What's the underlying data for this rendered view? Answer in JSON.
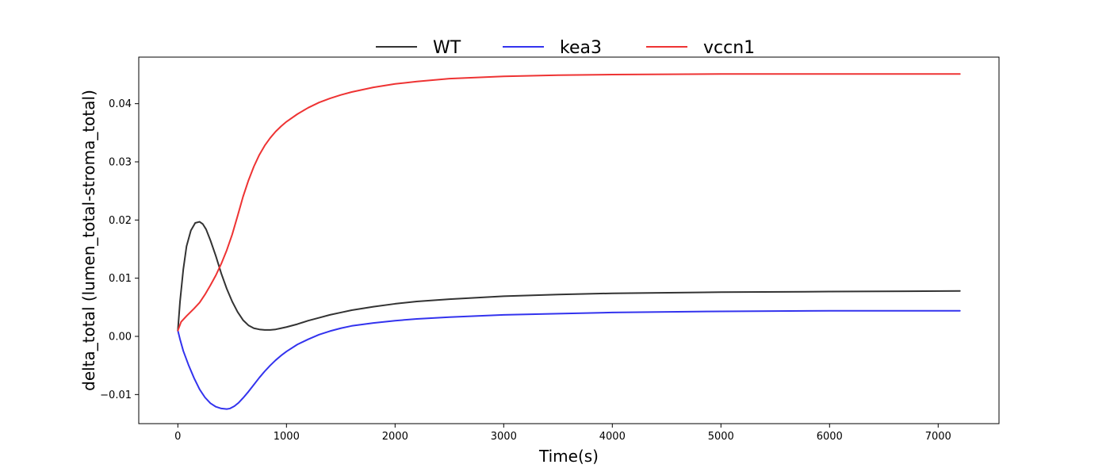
{
  "chart_data": {
    "type": "line",
    "title": "",
    "xlabel": "Time(s)",
    "ylabel": "delta_total (lumen_total-stroma_total)",
    "xlim": [
      -360,
      7560
    ],
    "ylim": [
      -0.015,
      0.048
    ],
    "xticks": [
      0,
      1000,
      2000,
      3000,
      4000,
      5000,
      6000,
      7000
    ],
    "yticks": [
      -0.01,
      0.0,
      0.01,
      0.02,
      0.03,
      0.04
    ],
    "xtick_labels": [
      "0",
      "1000",
      "2000",
      "3000",
      "4000",
      "5000",
      "6000",
      "7000"
    ],
    "ytick_labels": [
      "−0.01",
      "0.00",
      "0.01",
      "0.02",
      "0.03",
      "0.04"
    ],
    "grid": false,
    "legend_position": "top-center",
    "series": [
      {
        "name": "WT",
        "color": "#333333",
        "x": [
          0,
          20,
          50,
          80,
          120,
          160,
          200,
          230,
          260,
          300,
          350,
          400,
          450,
          500,
          550,
          600,
          650,
          700,
          750,
          800,
          850,
          900,
          950,
          1000,
          1100,
          1200,
          1300,
          1400,
          1500,
          1600,
          1800,
          2000,
          2200,
          2500,
          3000,
          3500,
          4000,
          5000,
          6000,
          7200
        ],
        "y": [
          0.001,
          0.006,
          0.0115,
          0.0155,
          0.0182,
          0.0195,
          0.0197,
          0.0193,
          0.0184,
          0.0165,
          0.0138,
          0.0108,
          0.0082,
          0.006,
          0.0042,
          0.0028,
          0.0019,
          0.0014,
          0.0012,
          0.0011,
          0.0011,
          0.0012,
          0.0014,
          0.0016,
          0.0021,
          0.0027,
          0.0032,
          0.0037,
          0.0041,
          0.0045,
          0.0051,
          0.0056,
          0.006,
          0.0064,
          0.0069,
          0.0072,
          0.0074,
          0.0076,
          0.0077,
          0.0078
        ]
      },
      {
        "name": "kea3",
        "color": "#3333ee",
        "x": [
          0,
          20,
          50,
          100,
          150,
          200,
          250,
          300,
          350,
          400,
          450,
          480,
          520,
          560,
          600,
          650,
          700,
          750,
          800,
          850,
          900,
          950,
          1000,
          1100,
          1200,
          1300,
          1400,
          1500,
          1600,
          1800,
          2000,
          2200,
          2500,
          3000,
          3500,
          4000,
          5000,
          6000,
          7200
        ],
        "y": [
          0.001,
          -0.0005,
          -0.0025,
          -0.005,
          -0.0072,
          -0.0091,
          -0.0105,
          -0.0115,
          -0.0121,
          -0.0124,
          -0.0125,
          -0.0124,
          -0.012,
          -0.0114,
          -0.0106,
          -0.0095,
          -0.0083,
          -0.0071,
          -0.006,
          -0.005,
          -0.0041,
          -0.0033,
          -0.0026,
          -0.0014,
          -0.0005,
          0.0003,
          0.0009,
          0.0014,
          0.0018,
          0.0023,
          0.0027,
          0.003,
          0.0033,
          0.0037,
          0.0039,
          0.0041,
          0.0043,
          0.0044,
          0.0044
        ]
      },
      {
        "name": "vccn1",
        "color": "#ee3333",
        "x": [
          0,
          30,
          80,
          150,
          200,
          250,
          300,
          350,
          400,
          450,
          500,
          550,
          600,
          650,
          700,
          750,
          800,
          850,
          900,
          950,
          1000,
          1100,
          1200,
          1300,
          1400,
          1500,
          1600,
          1800,
          2000,
          2200,
          2500,
          3000,
          3500,
          4000,
          5000,
          6000,
          7200
        ],
        "y": [
          0.001,
          0.0025,
          0.0035,
          0.0048,
          0.0058,
          0.0072,
          0.0088,
          0.0105,
          0.0125,
          0.0148,
          0.0175,
          0.0207,
          0.024,
          0.0268,
          0.0292,
          0.0312,
          0.0328,
          0.0341,
          0.0352,
          0.0361,
          0.0369,
          0.0382,
          0.0393,
          0.0402,
          0.0409,
          0.0415,
          0.042,
          0.0428,
          0.0434,
          0.0438,
          0.0443,
          0.0447,
          0.0449,
          0.045,
          0.0451,
          0.0451,
          0.0451
        ]
      }
    ]
  }
}
